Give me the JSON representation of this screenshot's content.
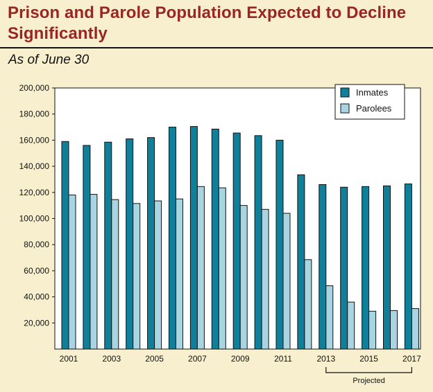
{
  "chart_data": {
    "type": "bar",
    "title": "Prison and Parole Population Expected to Decline Significantly",
    "subtitle": "As of June 30",
    "categories": [
      "2001",
      "2002",
      "2003",
      "2004",
      "2005",
      "2006",
      "2007",
      "2008",
      "2009",
      "2010",
      "2011",
      "2012",
      "2013",
      "2014",
      "2015",
      "2016",
      "2017"
    ],
    "tick_labels": [
      "2001",
      "2003",
      "2005",
      "2007",
      "2009",
      "2011",
      "2013",
      "2015",
      "2017"
    ],
    "series": [
      {
        "name": "Inmates",
        "color": "#0f7f9a",
        "values": [
          159000,
          156000,
          158500,
          161000,
          162000,
          170000,
          170500,
          168500,
          165500,
          163500,
          160000,
          133500,
          126000,
          124000,
          124500,
          125000,
          126500
        ]
      },
      {
        "name": "Parolees",
        "color": "#a9d4e1",
        "values": [
          118000,
          118500,
          114500,
          111500,
          113500,
          115000,
          124500,
          123500,
          110000,
          107000,
          104000,
          68500,
          48500,
          36000,
          29000,
          29500,
          31000
        ]
      }
    ],
    "y_ticks": [
      "200,000",
      "180,000",
      "160,000",
      "140,000",
      "120,000",
      "100,000",
      "80,000",
      "60,000",
      "40,000",
      "20,000"
    ],
    "y_tick_values": [
      200000,
      180000,
      160000,
      140000,
      120000,
      100000,
      80000,
      60000,
      40000,
      20000
    ],
    "ylim": [
      0,
      200000
    ],
    "annotation": {
      "label": "Projected",
      "start": "2013",
      "end": "2017"
    },
    "legend_position": "top-right"
  }
}
